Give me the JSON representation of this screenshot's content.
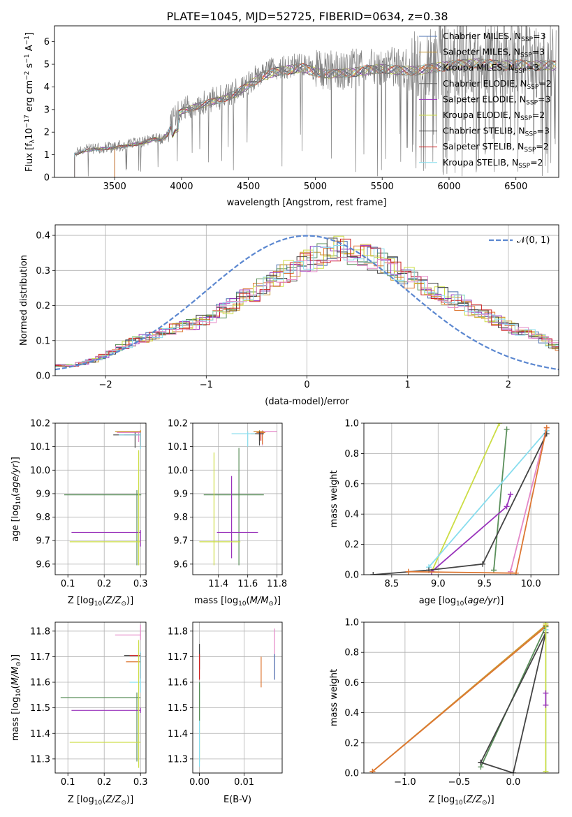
{
  "figure_title": "PLATE=1045, MJD=52725, FIBERID=0634, z=0.38",
  "colors": {
    "Chabrier MILES": "#4c72b0",
    "Salpeter MILES": "#cc9933",
    "Kroupa MILES": "#dd7733",
    "Chabrier ELODIE": "#666666",
    "Salpeter ELODIE": "#9933bb",
    "Kroupa ELODIE": "#ccdd44",
    "Chabrier STELIB": "#444444",
    "Salpeter STELIB": "#cc2222",
    "Kroupa STELIB": "#88ddee",
    "extra_pink": "#e488c8",
    "extra_green": "#5a8f5a",
    "gaussian": "#5b87d0",
    "data_gray": "#808080"
  },
  "chart_data": [
    {
      "id": "spectrum",
      "type": "line",
      "title": "PLATE=1045, MJD=52725, FIBERID=0634, z=0.38",
      "xlabel": "wavelength [Angstrom, rest frame]",
      "ylabel": "Flux [f_λ 10^-17 erg cm^-2 s^-1 A^-1]",
      "xlim": [
        3050,
        6820
      ],
      "ylim": [
        0,
        6.7
      ],
      "xticks": [
        3500,
        4000,
        4500,
        5000,
        5500,
        6000,
        6500
      ],
      "yticks": [
        0,
        1,
        2,
        3,
        4,
        5,
        6
      ],
      "continuum": {
        "x": [
          3200,
          3300,
          3400,
          3500,
          3600,
          3700,
          3800,
          3850,
          3900,
          3950,
          4000,
          4100,
          4200,
          4300,
          4400,
          4500,
          4600,
          4700,
          4800,
          4900,
          5000,
          5100,
          5200,
          5300,
          5400,
          5500,
          5600,
          5700,
          5800,
          5900,
          6000,
          6100,
          6200,
          6300,
          6400,
          6500,
          6600,
          6700
        ],
        "y": [
          1.05,
          1.25,
          1.3,
          1.35,
          1.45,
          1.55,
          1.75,
          1.7,
          2.0,
          2.8,
          3.0,
          3.2,
          3.4,
          3.55,
          3.8,
          4.2,
          4.6,
          4.8,
          4.9,
          5.0,
          4.8,
          4.7,
          4.75,
          4.8,
          4.9,
          4.95,
          4.9,
          4.85,
          4.9,
          5.0,
          5.1,
          5.15,
          5.2,
          5.15,
          5.1,
          5.15,
          5.1,
          5.1
        ]
      },
      "series": [
        {
          "name": "Chabrier MILES, N_SSP=3",
          "label": "Chabrier MILES, N",
          "sub": "SSP",
          "tail": "=3",
          "start": 3500
        },
        {
          "name": "Salpeter MILES, N_SSP=3",
          "label": "Salpeter MILES, N",
          "sub": "SSP",
          "tail": "=3",
          "start": 3500
        },
        {
          "name": "Kroupa MILES, N_SSP=3",
          "label": "Kroupa MILES, N",
          "sub": "SSP",
          "tail": "=3",
          "start": 3500
        },
        {
          "name": "Chabrier ELODIE, N_SSP=2",
          "label": "Chabrier ELODIE, N",
          "sub": "SSP",
          "tail": "=2",
          "start": 3200
        },
        {
          "name": "Salpeter ELODIE, N_SSP=3",
          "label": "Salpeter ELODIE, N",
          "sub": "SSP",
          "tail": "=3",
          "start": 3200
        },
        {
          "name": "Kroupa ELODIE, N_SSP=2",
          "label": "Kroupa ELODIE, N",
          "sub": "SSP",
          "tail": "=2",
          "start": 3200
        },
        {
          "name": "Chabrier STELIB, N_SSP=3",
          "label": "Chabrier STELIB, N",
          "sub": "SSP",
          "tail": "=3",
          "start": 3200
        },
        {
          "name": "Salpeter STELIB, N_SSP=2",
          "label": "Salpeter STELIB, N",
          "sub": "SSP",
          "tail": "=2",
          "start": 3200
        },
        {
          "name": "Kroupa STELIB, N_SSP=2",
          "label": "Kroupa STELIB, N",
          "sub": "SSP",
          "tail": "=2",
          "start": 3200
        }
      ],
      "legend": "upper right"
    },
    {
      "id": "residuals",
      "type": "histogram",
      "xlabel": "(data-model)/error",
      "ylabel": "Normed distribution",
      "xlim": [
        -2.5,
        2.5
      ],
      "ylim": [
        0,
        0.43
      ],
      "xticks": [
        -2,
        -1,
        0,
        1,
        2
      ],
      "yticks": [
        0.0,
        0.1,
        0.2,
        0.3,
        0.4
      ],
      "bin_width": 0.1,
      "profile": [
        [
          -2.5,
          0.03
        ],
        [
          -2.3,
          0.03
        ],
        [
          -2.1,
          0.045
        ],
        [
          -1.9,
          0.075
        ],
        [
          -1.7,
          0.1
        ],
        [
          -1.5,
          0.115
        ],
        [
          -1.3,
          0.135
        ],
        [
          -1.1,
          0.15
        ],
        [
          -0.9,
          0.175
        ],
        [
          -0.7,
          0.21
        ],
        [
          -0.5,
          0.24
        ],
        [
          -0.3,
          0.28
        ],
        [
          -0.1,
          0.31
        ],
        [
          0.1,
          0.34
        ],
        [
          0.3,
          0.36
        ],
        [
          0.5,
          0.35
        ],
        [
          0.7,
          0.33
        ],
        [
          0.9,
          0.3
        ],
        [
          1.1,
          0.265
        ],
        [
          1.3,
          0.24
        ],
        [
          1.5,
          0.21
        ],
        [
          1.7,
          0.18
        ],
        [
          1.9,
          0.155
        ],
        [
          2.1,
          0.13
        ],
        [
          2.3,
          0.11
        ],
        [
          2.5,
          0.08
        ]
      ],
      "gaussian": {
        "name": "𝒩(0, 1)",
        "mean": 0,
        "sigma": 1
      },
      "legend": "upper right"
    },
    {
      "id": "age_vs_Z",
      "type": "errorbar",
      "xlabel": "Z [log10(Z/Z☉)]",
      "ylabel": "age [log10(age/yr)]",
      "xlim": [
        0.065,
        0.315
      ],
      "ylim": [
        9.555,
        10.2
      ],
      "xticks": [
        0.1,
        0.2,
        0.3
      ],
      "yticks": [
        9.6,
        9.7,
        9.8,
        9.9,
        10.0,
        10.1,
        10.2
      ],
      "points": [
        {
          "x": 0.3,
          "y": 10.165,
          "xerr": [
            0.07,
            0
          ],
          "yerr": [
            0.06,
            0.005
          ],
          "color": "#cc9933"
        },
        {
          "x": 0.3,
          "y": 10.16,
          "xerr": [
            0.065,
            0
          ],
          "yerr": [
            0.055,
            0.005
          ],
          "color": "#dd7733"
        },
        {
          "x": 0.295,
          "y": 10.16,
          "xerr": [
            0.06,
            0.005
          ],
          "yerr": [
            0.04,
            0.005
          ],
          "color": "#e488c8"
        },
        {
          "x": 0.3,
          "y": 10.15,
          "xerr": [
            0.045,
            0
          ],
          "yerr": [
            0.05,
            0.01
          ],
          "color": "#cc2222"
        },
        {
          "x": 0.285,
          "y": 10.15,
          "xerr": [
            0.06,
            0.01
          ],
          "yerr": [
            0.055,
            0.01
          ],
          "color": "#444444"
        },
        {
          "x": 0.3,
          "y": 10.15,
          "xerr": [
            0.06,
            0
          ],
          "yerr": [
            0.06,
            0.01
          ],
          "color": "#88ddee"
        },
        {
          "x": 0.29,
          "y": 9.895,
          "xerr": [
            0.2,
            0.012
          ],
          "yerr": [
            0.3,
            0.02
          ],
          "color": "#5a8f5a"
        },
        {
          "x": 0.3,
          "y": 9.735,
          "xerr": [
            0.19,
            0
          ],
          "yerr": [
            0.06,
            0.01
          ],
          "color": "#9933bb"
        },
        {
          "x": 0.295,
          "y": 9.695,
          "xerr": [
            0.19,
            0.005
          ],
          "yerr": [
            0.1,
            0.39
          ],
          "color": "#ccdd44"
        }
      ]
    },
    {
      "id": "age_vs_mass",
      "type": "errorbar",
      "xlabel": "mass [log10(M/M☉)]",
      "xlim": [
        11.225,
        11.835
      ],
      "ylim": [
        9.555,
        10.2
      ],
      "xticks": [
        11.4,
        11.6,
        11.8
      ],
      "yticks": [
        9.6,
        9.7,
        9.8,
        9.9,
        10.0,
        10.1,
        10.2
      ],
      "points": [
        {
          "x": 11.7,
          "y": 10.165,
          "xerr": [
            0.06,
            0.1
          ],
          "yerr": [
            0.06,
            0.005
          ],
          "color": "#e488c8"
        },
        {
          "x": 11.68,
          "y": 10.165,
          "xerr": [
            0.04,
            0.03
          ],
          "yerr": [
            0.04,
            0.005
          ],
          "color": "#cc9933"
        },
        {
          "x": 11.7,
          "y": 10.16,
          "xerr": [
            0.04,
            0.02
          ],
          "yerr": [
            0.05,
            0.005
          ],
          "color": "#dd7733"
        },
        {
          "x": 11.69,
          "y": 10.155,
          "xerr": [
            0.03,
            0.02
          ],
          "yerr": [
            0.03,
            0.005
          ],
          "color": "#cc2222"
        },
        {
          "x": 11.68,
          "y": 10.155,
          "xerr": [
            0.06,
            0.03
          ],
          "yerr": [
            0.05,
            0.01
          ],
          "color": "#444444"
        },
        {
          "x": 11.6,
          "y": 10.155,
          "xerr": [
            0.11,
            0.05
          ],
          "yerr": [
            0.055,
            0.01
          ],
          "color": "#88ddee"
        },
        {
          "x": 11.54,
          "y": 9.895,
          "xerr": [
            0.24,
            0.17
          ],
          "yerr": [
            0.3,
            0.2
          ],
          "color": "#5a8f5a"
        },
        {
          "x": 11.49,
          "y": 9.735,
          "xerr": [
            0.1,
            0.18
          ],
          "yerr": [
            0.11,
            0.24
          ],
          "color": "#9933bb"
        },
        {
          "x": 11.37,
          "y": 9.695,
          "xerr": [
            0.1,
            0.18
          ],
          "yerr": [
            0.1,
            0.38
          ],
          "color": "#ccdd44"
        }
      ]
    },
    {
      "id": "weight_vs_age",
      "type": "line",
      "xlabel": "age [log10(age/yr)]",
      "ylabel": "mass weight",
      "xlim": [
        8.2,
        10.3
      ],
      "ylim": [
        0,
        1
      ],
      "xticks": [
        8.5,
        9.0,
        9.5,
        10.0
      ],
      "yticks": [
        0.0,
        0.2,
        0.4,
        0.6,
        0.8,
        1.0
      ],
      "series": [
        {
          "color": "#ccdd44",
          "x": [
            8.93,
            9.66
          ],
          "y": [
            0.02,
            1.0
          ]
        },
        {
          "color": "#5a8f5a",
          "x": [
            9.6,
            9.74
          ],
          "y": [
            0.03,
            0.96
          ]
        },
        {
          "color": "#9933bb",
          "x": [
            8.93,
            9.74,
            9.78
          ],
          "y": [
            0.02,
            0.45,
            0.53
          ]
        },
        {
          "color": "#88ddee",
          "x": [
            8.9,
            10.17
          ],
          "y": [
            0.05,
            0.95
          ]
        },
        {
          "color": "#e488c8",
          "x": [
            9.78,
            10.17
          ],
          "y": [
            0.02,
            0.97
          ]
        },
        {
          "color": "#444444",
          "x": [
            8.3,
            8.9,
            9.48,
            10.17
          ],
          "y": [
            0.0,
            0.03,
            0.07,
            0.93
          ]
        },
        {
          "color": "#dd7733",
          "x": [
            8.68,
            9.84,
            10.17
          ],
          "y": [
            0.02,
            0.01,
            0.97
          ]
        }
      ]
    },
    {
      "id": "mass_vs_Z",
      "type": "errorbar",
      "xlabel": "Z [log10(Z/Z☉)]",
      "ylabel": "mass [log10(M/M☉)]",
      "xlim": [
        0.065,
        0.315
      ],
      "ylim": [
        11.245,
        11.835
      ],
      "xticks": [
        0.1,
        0.2,
        0.3
      ],
      "yticks": [
        11.3,
        11.4,
        11.5,
        11.6,
        11.7,
        11.8
      ],
      "points": [
        {
          "x": 0.3,
          "y": 11.785,
          "xerr": [
            0.07,
            0
          ],
          "yerr": [
            0.02,
            0.04
          ],
          "color": "#e488c8"
        },
        {
          "x": 0.3,
          "y": 11.705,
          "xerr": [
            0.045,
            0
          ],
          "yerr": [
            0.03,
            0.01
          ],
          "color": "#444444"
        },
        {
          "x": 0.3,
          "y": 11.705,
          "xerr": [
            0.03,
            0
          ],
          "yerr": [
            0.09,
            0.01
          ],
          "color": "#cc2222"
        },
        {
          "x": 0.3,
          "y": 11.68,
          "xerr": [
            0.04,
            0
          ],
          "yerr": [
            0.03,
            0.01
          ],
          "color": "#dd7733"
        },
        {
          "x": 0.3,
          "y": 11.6,
          "xerr": [
            0.03,
            0
          ],
          "yerr": [
            0.04,
            0.12
          ],
          "color": "#88ddee"
        },
        {
          "x": 0.29,
          "y": 11.54,
          "xerr": [
            0.21,
            0.01
          ],
          "yerr": [
            0.25,
            0.02
          ],
          "color": "#5a8f5a"
        },
        {
          "x": 0.3,
          "y": 11.49,
          "xerr": [
            0.19,
            0
          ],
          "yerr": [
            0.01,
            0.01
          ],
          "color": "#9933bb"
        },
        {
          "x": 0.295,
          "y": 11.365,
          "xerr": [
            0.19,
            0.005
          ],
          "yerr": [
            0.1,
            0.4
          ],
          "color": "#ccdd44"
        }
      ]
    },
    {
      "id": "mass_vs_EBV",
      "type": "errorbar",
      "xlabel": "E(B-V)",
      "xlim": [
        -0.0015,
        0.0185
      ],
      "ylim": [
        11.245,
        11.835
      ],
      "xticks": [
        0.0,
        0.01
      ],
      "yticks": [
        11.3,
        11.4,
        11.5,
        11.6,
        11.7,
        11.8
      ],
      "points": [
        {
          "x": 0.0,
          "y": 11.7,
          "xerr": [
            0,
            0
          ],
          "yerr": [
            0.05,
            0.05
          ],
          "color": "#444444"
        },
        {
          "x": 0.0,
          "y": 11.68,
          "xerr": [
            0,
            0
          ],
          "yerr": [
            0.07,
            0.03
          ],
          "color": "#cc2222"
        },
        {
          "x": 0.0,
          "y": 11.49,
          "xerr": [
            0,
            0
          ],
          "yerr": [
            0.2,
            0.1
          ],
          "color": "#ccdd44"
        },
        {
          "x": 0.0,
          "y": 11.4,
          "xerr": [
            0,
            0
          ],
          "yerr": [
            0.13,
            0.2
          ],
          "color": "#88ddee"
        },
        {
          "x": 0.0,
          "y": 11.55,
          "xerr": [
            0,
            0
          ],
          "yerr": [
            0.1,
            0.05
          ],
          "color": "#5a8f5a"
        },
        {
          "x": 0.0138,
          "y": 11.64,
          "xerr": [
            0,
            0
          ],
          "yerr": [
            0.06,
            0.06
          ],
          "color": "#dd7733"
        },
        {
          "x": 0.0168,
          "y": 11.7,
          "xerr": [
            0,
            0
          ],
          "yerr": [
            0.09,
            0.11
          ],
          "color": "#e488c8"
        },
        {
          "x": 0.0168,
          "y": 11.66,
          "xerr": [
            0,
            0
          ],
          "yerr": [
            0.05,
            0.05
          ],
          "color": "#4c72b0"
        }
      ]
    },
    {
      "id": "weight_vs_Z",
      "type": "line",
      "xlabel": "Z [log10(Z/Z☉)]",
      "ylabel": "mass weight",
      "xlim": [
        -1.38,
        0.42
      ],
      "ylim": [
        0,
        1
      ],
      "xticks": [
        -1.0,
        -0.5,
        0.0
      ],
      "yticks": [
        0.0,
        0.2,
        0.4,
        0.6,
        0.8,
        1.0
      ],
      "series": [
        {
          "color": "#cc9933",
          "x": [
            -1.3,
            0.3
          ],
          "y": [
            0.01,
            0.98
          ]
        },
        {
          "color": "#dd7733",
          "x": [
            -1.3,
            0.3
          ],
          "y": [
            0.01,
            0.97
          ]
        },
        {
          "color": "#5a8f5a",
          "x": [
            -0.3,
            0.3
          ],
          "y": [
            0.04,
            0.97
          ]
        },
        {
          "color": "#444444",
          "x": [
            -0.3,
            0.3,
            0.0,
            -0.3
          ],
          "y": [
            0.07,
            0.93,
            0.0,
            0.07
          ]
        },
        {
          "color": "#88ddee",
          "x": [
            0.3,
            0.3
          ],
          "y": [
            0.01,
            0.95
          ]
        },
        {
          "color": "#ccdd44",
          "x": [
            0.3,
            0.3
          ],
          "y": [
            0.01,
            0.99
          ]
        },
        {
          "color": "#9933bb",
          "x": [
            0.3,
            0.3
          ],
          "y": [
            0.45,
            0.53
          ]
        }
      ]
    }
  ]
}
